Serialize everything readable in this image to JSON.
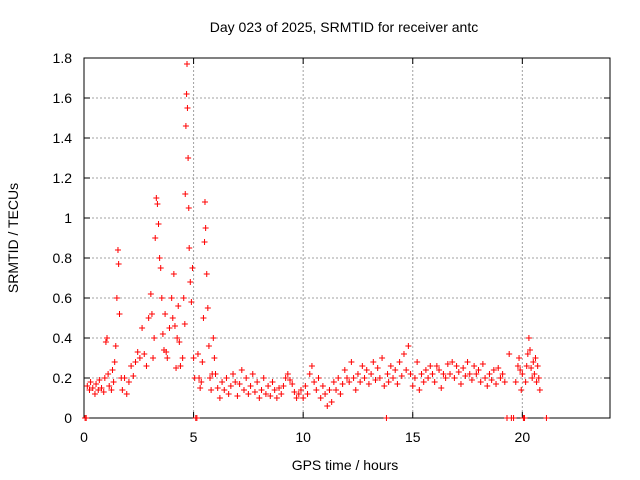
{
  "chart_data": {
    "type": "scatter",
    "title": "Day 023 of 2025, SRMTID for receiver antc",
    "xlabel": "GPS time / hours",
    "ylabel": "SRMTID / TECUs",
    "xlim": [
      0,
      24
    ],
    "ylim": [
      0,
      1.8
    ],
    "xticks": [
      0,
      5,
      10,
      15,
      20
    ],
    "xtick_labels": [
      "0",
      "5",
      "10",
      "15",
      "20"
    ],
    "yticks": [
      0,
      0.2,
      0.4,
      0.6,
      0.8,
      1.0,
      1.2,
      1.4,
      1.6,
      1.8
    ],
    "ytick_labels": [
      "0",
      "0.2",
      "0.4",
      "0.6",
      "0.8",
      "1",
      "1.2",
      "1.4",
      "1.6",
      "1.8"
    ],
    "grid": true,
    "marker": "+",
    "series": [
      {
        "name": "SRMTID",
        "color": "#ff0000",
        "points": [
          [
            0.05,
            0.0
          ],
          [
            0.1,
            0.0
          ],
          [
            0.15,
            0.16
          ],
          [
            0.25,
            0.14
          ],
          [
            0.3,
            0.18
          ],
          [
            0.4,
            0.15
          ],
          [
            0.5,
            0.12
          ],
          [
            0.55,
            0.17
          ],
          [
            0.65,
            0.14
          ],
          [
            0.7,
            0.19
          ],
          [
            0.8,
            0.15
          ],
          [
            0.9,
            0.13
          ],
          [
            0.95,
            0.2
          ],
          [
            1.0,
            0.38
          ],
          [
            1.05,
            0.4
          ],
          [
            1.1,
            0.22
          ],
          [
            1.15,
            0.16
          ],
          [
            1.25,
            0.14
          ],
          [
            1.3,
            0.24
          ],
          [
            1.35,
            0.18
          ],
          [
            1.4,
            0.28
          ],
          [
            1.45,
            0.36
          ],
          [
            1.5,
            0.6
          ],
          [
            1.55,
            0.84
          ],
          [
            1.58,
            0.77
          ],
          [
            1.62,
            0.52
          ],
          [
            1.7,
            0.2
          ],
          [
            1.75,
            0.14
          ],
          [
            1.85,
            0.2
          ],
          [
            1.95,
            0.12
          ],
          [
            2.05,
            0.18
          ],
          [
            2.15,
            0.26
          ],
          [
            2.25,
            0.21
          ],
          [
            2.35,
            0.28
          ],
          [
            2.45,
            0.33
          ],
          [
            2.55,
            0.3
          ],
          [
            2.65,
            0.45
          ],
          [
            2.75,
            0.32
          ],
          [
            2.85,
            0.26
          ],
          [
            2.95,
            0.5
          ],
          [
            3.05,
            0.62
          ],
          [
            3.1,
            0.52
          ],
          [
            3.15,
            0.3
          ],
          [
            3.2,
            0.4
          ],
          [
            3.25,
            0.9
          ],
          [
            3.3,
            1.1
          ],
          [
            3.35,
            1.07
          ],
          [
            3.4,
            0.97
          ],
          [
            3.45,
            0.8
          ],
          [
            3.5,
            0.75
          ],
          [
            3.55,
            0.6
          ],
          [
            3.6,
            0.42
          ],
          [
            3.65,
            0.34
          ],
          [
            3.7,
            0.52
          ],
          [
            3.75,
            0.33
          ],
          [
            3.8,
            0.3
          ],
          [
            3.9,
            0.45
          ],
          [
            4.0,
            0.6
          ],
          [
            4.05,
            0.5
          ],
          [
            4.1,
            0.72
          ],
          [
            4.15,
            0.46
          ],
          [
            4.2,
            0.25
          ],
          [
            4.25,
            0.4
          ],
          [
            4.3,
            0.56
          ],
          [
            4.35,
            0.38
          ],
          [
            4.4,
            0.26
          ],
          [
            4.5,
            0.3
          ],
          [
            4.55,
            0.6
          ],
          [
            4.6,
            0.47
          ],
          [
            4.62,
            1.12
          ],
          [
            4.65,
            1.46
          ],
          [
            4.68,
            1.62
          ],
          [
            4.7,
            1.77
          ],
          [
            4.72,
            1.55
          ],
          [
            4.75,
            1.3
          ],
          [
            4.78,
            1.05
          ],
          [
            4.8,
            0.85
          ],
          [
            4.85,
            0.68
          ],
          [
            4.9,
            0.58
          ],
          [
            4.95,
            0.75
          ],
          [
            5.0,
            0.3
          ],
          [
            5.05,
            0.2
          ],
          [
            5.1,
            0.0
          ],
          [
            5.15,
            0.0
          ],
          [
            5.2,
            0.32
          ],
          [
            5.25,
            0.2
          ],
          [
            5.3,
            0.15
          ],
          [
            5.35,
            0.18
          ],
          [
            5.4,
            0.28
          ],
          [
            5.45,
            0.5
          ],
          [
            5.5,
            0.88
          ],
          [
            5.52,
            1.08
          ],
          [
            5.55,
            0.95
          ],
          [
            5.6,
            0.72
          ],
          [
            5.65,
            0.55
          ],
          [
            5.7,
            0.36
          ],
          [
            5.75,
            0.2
          ],
          [
            5.8,
            0.14
          ],
          [
            5.85,
            0.22
          ],
          [
            5.9,
            0.4
          ],
          [
            5.95,
            0.3
          ],
          [
            6.0,
            0.22
          ],
          [
            6.1,
            0.15
          ],
          [
            6.2,
            0.1
          ],
          [
            6.3,
            0.18
          ],
          [
            6.4,
            0.14
          ],
          [
            6.5,
            0.2
          ],
          [
            6.6,
            0.12
          ],
          [
            6.7,
            0.16
          ],
          [
            6.8,
            0.22
          ],
          [
            6.9,
            0.18
          ],
          [
            7.0,
            0.11
          ],
          [
            7.1,
            0.17
          ],
          [
            7.2,
            0.24
          ],
          [
            7.3,
            0.14
          ],
          [
            7.4,
            0.2
          ],
          [
            7.5,
            0.12
          ],
          [
            7.6,
            0.16
          ],
          [
            7.7,
            0.22
          ],
          [
            7.8,
            0.13
          ],
          [
            7.9,
            0.18
          ],
          [
            8.0,
            0.1
          ],
          [
            8.1,
            0.14
          ],
          [
            8.2,
            0.2
          ],
          [
            8.3,
            0.12
          ],
          [
            8.4,
            0.16
          ],
          [
            8.5,
            0.11
          ],
          [
            8.6,
            0.18
          ],
          [
            8.7,
            0.14
          ],
          [
            8.8,
            0.1
          ],
          [
            8.9,
            0.15
          ],
          [
            9.0,
            0.12
          ],
          [
            9.1,
            0.16
          ],
          [
            9.2,
            0.2
          ],
          [
            9.3,
            0.22
          ],
          [
            9.4,
            0.19
          ],
          [
            9.5,
            0.17
          ],
          [
            9.6,
            0.13
          ],
          [
            9.7,
            0.1
          ],
          [
            9.8,
            0.12
          ],
          [
            9.9,
            0.14
          ],
          [
            10.0,
            0.1
          ],
          [
            10.1,
            0.16
          ],
          [
            10.2,
            0.12
          ],
          [
            10.3,
            0.22
          ],
          [
            10.4,
            0.26
          ],
          [
            10.5,
            0.18
          ],
          [
            10.6,
            0.14
          ],
          [
            10.7,
            0.2
          ],
          [
            10.8,
            0.1
          ],
          [
            10.9,
            0.16
          ],
          [
            11.0,
            0.12
          ],
          [
            11.1,
            0.06
          ],
          [
            11.2,
            0.14
          ],
          [
            11.3,
            0.08
          ],
          [
            11.4,
            0.18
          ],
          [
            11.5,
            0.14
          ],
          [
            11.6,
            0.2
          ],
          [
            11.7,
            0.12
          ],
          [
            11.8,
            0.17
          ],
          [
            11.9,
            0.24
          ],
          [
            12.0,
            0.2
          ],
          [
            12.1,
            0.18
          ],
          [
            12.2,
            0.28
          ],
          [
            12.3,
            0.2
          ],
          [
            12.4,
            0.14
          ],
          [
            12.5,
            0.22
          ],
          [
            12.6,
            0.18
          ],
          [
            12.7,
            0.26
          ],
          [
            12.8,
            0.2
          ],
          [
            12.9,
            0.24
          ],
          [
            13.0,
            0.17
          ],
          [
            13.1,
            0.22
          ],
          [
            13.2,
            0.28
          ],
          [
            13.3,
            0.19
          ],
          [
            13.4,
            0.25
          ],
          [
            13.5,
            0.2
          ],
          [
            13.6,
            0.3
          ],
          [
            13.7,
            0.16
          ],
          [
            13.8,
            0.0
          ],
          [
            13.85,
            0.22
          ],
          [
            13.9,
            0.18
          ],
          [
            14.0,
            0.26
          ],
          [
            14.1,
            0.2
          ],
          [
            14.2,
            0.24
          ],
          [
            14.3,
            0.17
          ],
          [
            14.4,
            0.28
          ],
          [
            14.5,
            0.21
          ],
          [
            14.6,
            0.32
          ],
          [
            14.7,
            0.24
          ],
          [
            14.8,
            0.36
          ],
          [
            14.9,
            0.22
          ],
          [
            15.0,
            0.16
          ],
          [
            15.1,
            0.2
          ],
          [
            15.2,
            0.28
          ],
          [
            15.3,
            0.14
          ],
          [
            15.4,
            0.22
          ],
          [
            15.5,
            0.18
          ],
          [
            15.6,
            0.24
          ],
          [
            15.7,
            0.2
          ],
          [
            15.8,
            0.26
          ],
          [
            15.9,
            0.22
          ],
          [
            16.0,
            0.18
          ],
          [
            16.1,
            0.26
          ],
          [
            16.2,
            0.24
          ],
          [
            16.3,
            0.15
          ],
          [
            16.4,
            0.22
          ],
          [
            16.5,
            0.2
          ],
          [
            16.6,
            0.27
          ],
          [
            16.7,
            0.22
          ],
          [
            16.8,
            0.28
          ],
          [
            16.9,
            0.2
          ],
          [
            17.0,
            0.26
          ],
          [
            17.1,
            0.23
          ],
          [
            17.2,
            0.17
          ],
          [
            17.3,
            0.25
          ],
          [
            17.4,
            0.21
          ],
          [
            17.5,
            0.28
          ],
          [
            17.6,
            0.22
          ],
          [
            17.7,
            0.19
          ],
          [
            17.8,
            0.26
          ],
          [
            17.9,
            0.22
          ],
          [
            18.0,
            0.24
          ],
          [
            18.1,
            0.18
          ],
          [
            18.2,
            0.27
          ],
          [
            18.3,
            0.2
          ],
          [
            18.4,
            0.16
          ],
          [
            18.5,
            0.22
          ],
          [
            18.6,
            0.19
          ],
          [
            18.7,
            0.24
          ],
          [
            18.8,
            0.17
          ],
          [
            18.9,
            0.25
          ],
          [
            19.0,
            0.2
          ],
          [
            19.1,
            0.22
          ],
          [
            19.2,
            0.18
          ],
          [
            19.3,
            0.0
          ],
          [
            19.4,
            0.32
          ],
          [
            19.5,
            0.0
          ],
          [
            19.6,
            0.0
          ],
          [
            19.7,
            0.18
          ],
          [
            19.8,
            0.26
          ],
          [
            19.85,
            0.3
          ],
          [
            19.9,
            0.24
          ],
          [
            19.95,
            0.14
          ],
          [
            20.0,
            0.22
          ],
          [
            20.05,
            0.0
          ],
          [
            20.1,
            0.0
          ],
          [
            20.15,
            0.18
          ],
          [
            20.2,
            0.26
          ],
          [
            20.25,
            0.32
          ],
          [
            20.3,
            0.4
          ],
          [
            20.35,
            0.34
          ],
          [
            20.4,
            0.25
          ],
          [
            20.45,
            0.2
          ],
          [
            20.5,
            0.28
          ],
          [
            20.55,
            0.22
          ],
          [
            20.6,
            0.3
          ],
          [
            20.65,
            0.18
          ],
          [
            20.7,
            0.26
          ],
          [
            20.75,
            0.2
          ],
          [
            20.8,
            0.14
          ],
          [
            21.1,
            0.0
          ]
        ]
      }
    ]
  }
}
